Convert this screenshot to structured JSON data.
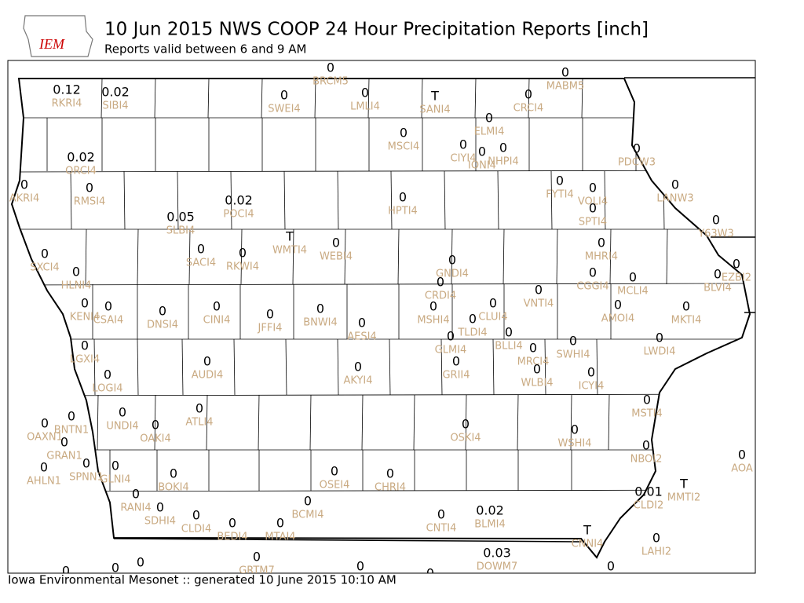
{
  "header": {
    "logo_text": "IEM",
    "title": "10 Jun 2015 NWS COOP 24 Hour Precipitation Reports [inch]",
    "subtitle": "Reports valid between 6 and 9 AM"
  },
  "footer": "Iowa Environmental Mesonet :: generated 10 June 2015 10:10 AM",
  "stations": [
    {
      "id": "RKRI4",
      "value": 0.12
    },
    {
      "id": "SIBI4",
      "value": 0.02
    },
    {
      "id": "BRCM5",
      "value": 0
    },
    {
      "id": "SWEI4",
      "value": 0
    },
    {
      "id": "LMLI4",
      "value": 0
    },
    {
      "id": "SANI4",
      "value": "T"
    },
    {
      "id": "CRCI4",
      "value": 0
    },
    {
      "id": "MABM5",
      "value": 0
    },
    {
      "id": "ELMI4",
      "value": 0
    },
    {
      "id": "MSCI4",
      "value": 0
    },
    {
      "id": "CIYI4",
      "value": 0
    },
    {
      "id": "IONI4",
      "value": 0
    },
    {
      "id": "NHPI4",
      "value": 0
    },
    {
      "id": "PDCW3",
      "value": 0
    },
    {
      "id": "ORCI4",
      "value": 0.02
    },
    {
      "id": "AKRI4",
      "value": 0
    },
    {
      "id": "RMSI4",
      "value": 0
    },
    {
      "id": "POCI4",
      "value": 0.02
    },
    {
      "id": "HPTI4",
      "value": 0
    },
    {
      "id": "FYTI4",
      "value": 0
    },
    {
      "id": "VOLI4",
      "value": 0
    },
    {
      "id": "LANW3",
      "value": 0
    },
    {
      "id": "SPTI4",
      "value": 0
    },
    {
      "id": "SLBI4",
      "value": 0.05
    },
    {
      "id": "WMTI4",
      "value": "T"
    },
    {
      "id": "WEBI4",
      "value": 0
    },
    {
      "id": "Y63W3",
      "value": 0
    },
    {
      "id": "SACI4",
      "value": 0
    },
    {
      "id": "RKWI4",
      "value": 0
    },
    {
      "id": "SXCI4",
      "value": 0
    },
    {
      "id": "MHRI4",
      "value": 0
    },
    {
      "id": "EZBI2",
      "value": 0
    },
    {
      "id": "GNDI4",
      "value": 0
    },
    {
      "id": "BLVI4",
      "value": 0
    },
    {
      "id": "HLNI4",
      "value": 0
    },
    {
      "id": "CGGI4",
      "value": 0
    },
    {
      "id": "MCLI4",
      "value": 0
    },
    {
      "id": "CRDI4",
      "value": 0
    },
    {
      "id": "VNTI4",
      "value": 0
    },
    {
      "id": "KENI4",
      "value": 0
    },
    {
      "id": "CSAI4",
      "value": 0
    },
    {
      "id": "DNSI4",
      "value": 0
    },
    {
      "id": "CINI4",
      "value": 0
    },
    {
      "id": "JFFI4",
      "value": 0
    },
    {
      "id": "BNWI4",
      "value": 0
    },
    {
      "id": "MSHI4",
      "value": 0
    },
    {
      "id": "CLUI4",
      "value": 0
    },
    {
      "id": "AMOI4",
      "value": 0
    },
    {
      "id": "MKTI4",
      "value": 0
    },
    {
      "id": "AESI4",
      "value": 0
    },
    {
      "id": "TLDI4",
      "value": 0
    },
    {
      "id": "BLLI4",
      "value": 0
    },
    {
      "id": "GLMI4",
      "value": 0
    },
    {
      "id": "LWDI4",
      "value": 0
    },
    {
      "id": "LGXI4",
      "value": 0
    },
    {
      "id": "SWHI4",
      "value": 0
    },
    {
      "id": "MRCI4",
      "value": 0
    },
    {
      "id": "GRII4",
      "value": 0
    },
    {
      "id": "AUDI4",
      "value": 0
    },
    {
      "id": "AKYI4",
      "value": 0
    },
    {
      "id": "WLBI4",
      "value": 0
    },
    {
      "id": "ICYI4",
      "value": 0
    },
    {
      "id": "LOGI4",
      "value": 0
    },
    {
      "id": "MSTI4",
      "value": 0
    },
    {
      "id": "ATLI4",
      "value": 0
    },
    {
      "id": "UNDI4",
      "value": 0
    },
    {
      "id": "BNTN1",
      "value": 0
    },
    {
      "id": "OAXN1",
      "value": 0
    },
    {
      "id": "OAKI4",
      "value": 0
    },
    {
      "id": "OSKI4",
      "value": 0
    },
    {
      "id": "WSHI4",
      "value": 0
    },
    {
      "id": "GRAN1",
      "value": 0
    },
    {
      "id": "NBOI2",
      "value": 0
    },
    {
      "id": "AOA",
      "value": 0
    },
    {
      "id": "SPNN1",
      "value": 0
    },
    {
      "id": "AHLN1",
      "value": 0
    },
    {
      "id": "GLNI4",
      "value": 0
    },
    {
      "id": "BOKI4",
      "value": 0
    },
    {
      "id": "OSEI4",
      "value": 0
    },
    {
      "id": "CHRI4",
      "value": 0
    },
    {
      "id": "MMTI2",
      "value": "T"
    },
    {
      "id": "CLDI2",
      "value": 0.01
    },
    {
      "id": "RANI4",
      "value": 0
    },
    {
      "id": "BCMI4",
      "value": 0
    },
    {
      "id": "SDHI4",
      "value": 0
    },
    {
      "id": "CLDI4",
      "value": 0
    },
    {
      "id": "CNTI4",
      "value": 0
    },
    {
      "id": "BLMI4",
      "value": 0.02
    },
    {
      "id": "BEDI4",
      "value": 0
    },
    {
      "id": "MTAI4",
      "value": 0
    },
    {
      "id": "CNNI4",
      "value": "T"
    },
    {
      "id": "LAHI2",
      "value": 0
    },
    {
      "id": "DOWM7",
      "value": 0.03
    },
    {
      "id": "GRTM7",
      "value": 0
    },
    {
      "id": null,
      "value": 0
    },
    {
      "id": null,
      "value": 0
    },
    {
      "id": null,
      "value": 0
    },
    {
      "id": null,
      "value": 0
    },
    {
      "id": null,
      "value": 0
    },
    {
      "id": null,
      "value": 0
    }
  ]
}
